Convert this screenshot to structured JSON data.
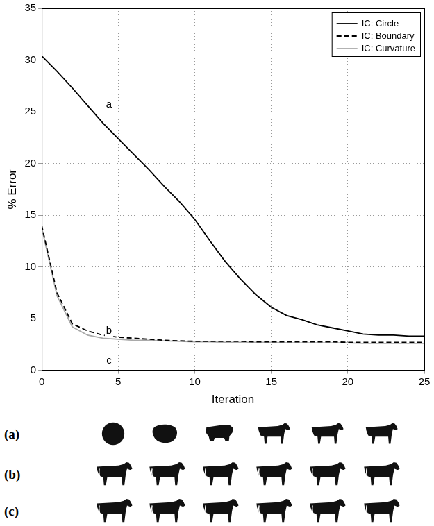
{
  "chart_data": {
    "type": "line",
    "x_label": "Iteration",
    "y_label": "% Error",
    "x": [
      0,
      1,
      2,
      3,
      4,
      5,
      6,
      7,
      8,
      9,
      10,
      11,
      12,
      13,
      14,
      15,
      16,
      17,
      18,
      19,
      20,
      21,
      22,
      23,
      24,
      25
    ],
    "series": [
      {
        "name": "IC: Circle",
        "color": "#000000",
        "line_style": "solid",
        "values": [
          30.4,
          28.9,
          27.3,
          25.6,
          23.9,
          22.4,
          20.9,
          19.4,
          17.8,
          16.3,
          14.6,
          12.5,
          10.5,
          8.8,
          7.3,
          6.1,
          5.3,
          4.9,
          4.4,
          4.1,
          3.8,
          3.5,
          3.4,
          3.4,
          3.3,
          3.3
        ]
      },
      {
        "name": "IC: Boundary",
        "color": "#000000",
        "line_style": "dashed",
        "values": [
          14.0,
          7.5,
          4.5,
          3.8,
          3.4,
          3.2,
          3.1,
          3.0,
          2.9,
          2.85,
          2.8,
          2.8,
          2.8,
          2.8,
          2.75,
          2.75,
          2.75,
          2.75,
          2.75,
          2.75,
          2.7,
          2.7,
          2.7,
          2.7,
          2.7,
          2.7
        ]
      },
      {
        "name": "IC: Curvature",
        "color": "#aaaaaa",
        "line_style": "solid",
        "values": [
          13.8,
          7.2,
          4.2,
          3.4,
          3.1,
          3.0,
          2.9,
          2.9,
          2.85,
          2.8,
          2.75,
          2.75,
          2.7,
          2.7,
          2.7,
          2.7,
          2.65,
          2.65,
          2.65,
          2.65,
          2.65,
          2.6,
          2.6,
          2.6,
          2.6,
          2.6
        ]
      }
    ],
    "marker": "none",
    "xlim": [
      0,
      25
    ],
    "xticks": [
      0,
      5,
      10,
      15,
      20,
      25
    ],
    "ylim": [
      0,
      35
    ],
    "yticks": [
      0,
      5,
      10,
      15,
      20,
      25,
      30,
      35
    ],
    "grid": true,
    "legend": "upper right",
    "annotations": [
      {
        "text": "a",
        "x": 4.4,
        "y": 25.7
      },
      {
        "text": "b",
        "x": 4.4,
        "y": 3.8
      },
      {
        "text": "c",
        "x": 4.4,
        "y": 0.9
      }
    ]
  },
  "image_rows": [
    "(a)",
    "(b)",
    "(c)"
  ]
}
